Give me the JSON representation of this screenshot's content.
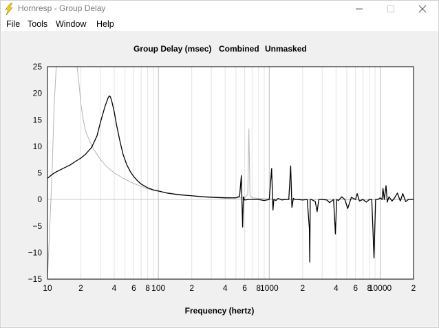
{
  "window": {
    "title": "Hornresp - Group Delay",
    "minimize_label": "—",
    "maximize_label": "☐",
    "close_label": "✕"
  },
  "menu": {
    "items": [
      "File",
      "Tools",
      "Window",
      "Help"
    ]
  },
  "chart_header": {
    "title": "Group Delay (msec)",
    "mode": "Combined",
    "mask": "Unmasked"
  },
  "chart_data": {
    "type": "line",
    "title": "Group Delay (msec)",
    "xlabel": "Frequency (hertz)",
    "ylabel": "",
    "xscale": "log",
    "xlim": [
      10,
      20000
    ],
    "ylim": [
      -15,
      25
    ],
    "y_ticks": [
      25,
      20,
      15,
      10,
      5,
      0,
      -5,
      -10,
      -15
    ],
    "y_tick_labels": [
      "25",
      "20",
      "15",
      "10",
      "5",
      "0",
      "−5",
      "−10",
      "−15"
    ],
    "x_ticks": [
      10,
      20,
      40,
      60,
      80,
      100,
      200,
      400,
      600,
      800,
      1000,
      2000,
      4000,
      6000,
      8000,
      10000,
      20000
    ],
    "x_tick_labels": [
      "10",
      "2",
      "4",
      "6",
      "8",
      "100",
      "2",
      "4",
      "6",
      "8",
      "1000",
      "2",
      "4",
      "6",
      "8",
      "10000",
      "2"
    ],
    "grid": true,
    "series": [
      {
        "color": "#000000",
        "x": [
          10,
          11,
          12,
          14,
          16,
          18,
          20,
          22,
          25,
          28,
          30,
          33,
          35,
          36,
          37,
          38,
          40,
          42,
          45,
          48,
          52,
          56,
          60,
          65,
          70,
          80,
          90,
          100,
          120,
          150,
          200,
          250,
          300,
          400,
          500,
          540,
          560,
          575,
          585,
          600,
          650,
          700,
          800,
          900,
          1000,
          1050,
          1080,
          1100,
          1150,
          1200,
          1300,
          1400,
          1500,
          1560,
          1600,
          1650,
          1700,
          1800,
          2000,
          2200,
          2300,
          2320,
          2340,
          2400,
          2600,
          2700,
          2800,
          3000,
          3300,
          3500,
          3800,
          3950,
          4050,
          4200,
          4500,
          4800,
          5100,
          5500,
          6000,
          6200,
          6500,
          7000,
          7500,
          8000,
          8400,
          8600,
          8800,
          9100,
          9500,
          10000,
          10400,
          10600,
          10900,
          11300,
          11600,
          12000,
          12800,
          13500,
          14300,
          15200,
          16000,
          17000,
          18000,
          20000
        ],
        "y": [
          4,
          4.7,
          5.2,
          5.9,
          6.5,
          7.2,
          7.8,
          8.5,
          9.8,
          12,
          14.5,
          17.5,
          19,
          19.5,
          19.3,
          18.5,
          16.5,
          14,
          11,
          8.5,
          6.5,
          5.2,
          4.3,
          3.5,
          2.9,
          2.2,
          1.8,
          1.6,
          1.2,
          0.9,
          0.7,
          0.5,
          0.4,
          0.3,
          0.3,
          0.6,
          4.5,
          -5.2,
          0.5,
          -0.1,
          0,
          0,
          0,
          -0.2,
          0,
          5.8,
          -2,
          0,
          -0.2,
          0.2,
          -0.1,
          0,
          0,
          6.3,
          -1.5,
          0.2,
          0,
          0,
          -0.1,
          0,
          -5.5,
          -11.8,
          0,
          0,
          -0.4,
          -2.3,
          0,
          0,
          -0.1,
          -0.6,
          0,
          -6.5,
          0,
          -0.2,
          0.5,
          0,
          -1.7,
          0.4,
          0,
          1.1,
          -0.3,
          0,
          -0.5,
          0,
          0,
          -5.5,
          -11,
          0,
          0,
          0.3,
          0,
          2.1,
          0,
          2.6,
          -0.5,
          0.5,
          -0.3,
          0.3,
          1.2,
          -0.3,
          1.1,
          -0.4,
          0,
          0
        ]
      },
      {
        "color": "#b4b4b4",
        "x": [
          10,
          10.5,
          11,
          11.5,
          12,
          13,
          14,
          15,
          17,
          18,
          18.5,
          19,
          20,
          21,
          22,
          24,
          26,
          28,
          30,
          35,
          40,
          50,
          60,
          80,
          100,
          150,
          200,
          300,
          500,
          600,
          640,
          655,
          670,
          700,
          800,
          1000,
          2000,
          5000,
          10000,
          20000
        ],
        "y": [
          -15,
          -5,
          5,
          18,
          25,
          25,
          25,
          25,
          25,
          25,
          25,
          23,
          18,
          15,
          13,
          11,
          9.5,
          8.5,
          7.5,
          6,
          5,
          3.8,
          3,
          2,
          1.5,
          1,
          0.7,
          0.5,
          0.3,
          0.3,
          1,
          13.3,
          0.8,
          0.3,
          0.2,
          0.1,
          0,
          0,
          0,
          0
        ]
      }
    ]
  }
}
